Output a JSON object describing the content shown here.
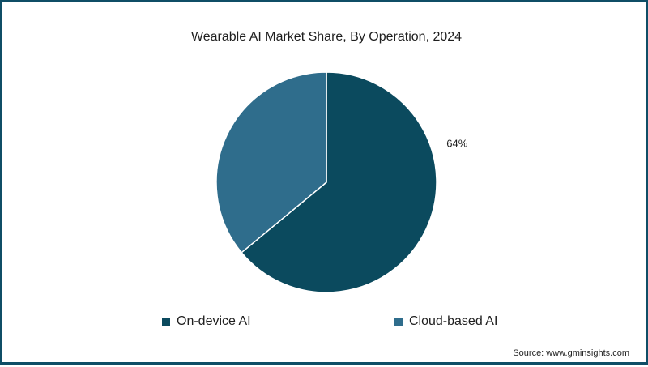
{
  "chart_data": {
    "type": "pie",
    "title": "Wearable AI Market Share, By Operation, 2024",
    "categories": [
      "On-device AI",
      "Cloud-based AI"
    ],
    "values": [
      64,
      36
    ],
    "data_labels": [
      "64%",
      ""
    ],
    "colors": [
      "#0b4a5e",
      "#2f6d8c"
    ],
    "legend_position": "bottom",
    "source": "Source: www.gminsights.com"
  }
}
